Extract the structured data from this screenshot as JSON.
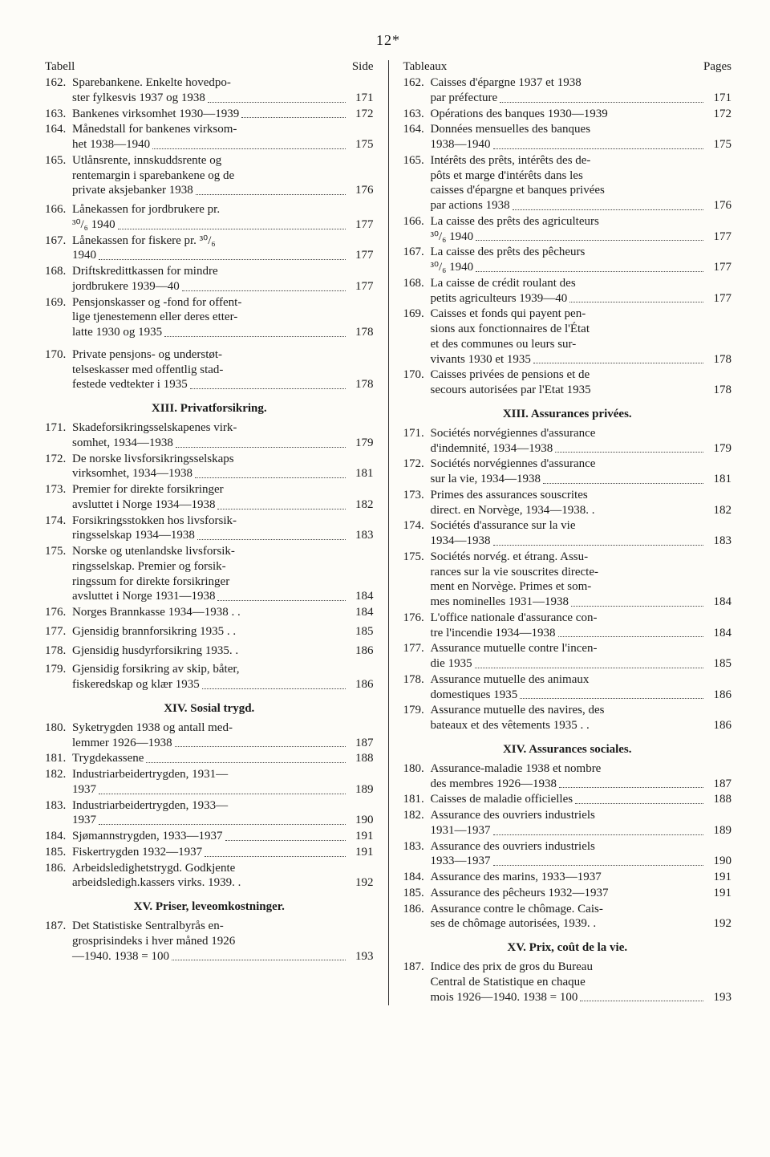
{
  "page_number": "12*",
  "left": {
    "header_left": "Tabell",
    "header_right": "Side",
    "groups": [
      {
        "entries": [
          {
            "num": "162.",
            "lines": [
              "Sparebankene. Enkelte hovedpo-"
            ],
            "last": "ster fylkesvis 1937 og 1938",
            "page": "171"
          },
          {
            "num": "163.",
            "lines": [],
            "last": "Bankenes virksomhet 1930—1939",
            "page": "172"
          },
          {
            "num": "164.",
            "lines": [
              "Månedstall for bankenes virksom-"
            ],
            "last": "het 1938—1940",
            "page": "175"
          },
          {
            "num": "165.",
            "lines": [
              "Utlånsrente, innskuddsrente og",
              "rentemargin i sparebankene og de"
            ],
            "last": "private aksjebanker 1938",
            "page": "176"
          }
        ]
      },
      {
        "spacer": "vspace-sm",
        "entries": [
          {
            "num": "166.",
            "lines": [
              "Lånekassen for jordbrukere pr."
            ],
            "last": "³⁰/₆ 1940",
            "page": "177"
          },
          {
            "num": "167.",
            "lines": [
              "Lånekassen for fiskere pr. ³⁰/₆"
            ],
            "last": "1940",
            "page": "177"
          },
          {
            "num": "168.",
            "lines": [
              "Driftskredittkassen for mindre"
            ],
            "last": "jordbrukere 1939—40",
            "page": "177"
          },
          {
            "num": "169.",
            "lines": [
              "Pensjonskasser og -fond for offent-",
              "lige tjenestemenn eller deres etter-"
            ],
            "last": "latte 1930 og 1935",
            "page": "178"
          }
        ]
      },
      {
        "spacer": "vspace",
        "entries": [
          {
            "num": "170.",
            "lines": [
              "Private pensjons- og understøt-",
              "telseskasser med offentlig stad-"
            ],
            "last": "festede vedtekter i 1935",
            "page": "178"
          }
        ]
      },
      {
        "heading": "XIII.  Privatforsikring.",
        "entries": [
          {
            "num": "171.",
            "lines": [
              "Skadeforsikringsselskapenes virk-"
            ],
            "last": "somhet, 1934—1938",
            "page": "179"
          },
          {
            "num": "172.",
            "lines": [
              "De norske livsforsikringsselskaps"
            ],
            "last": "virksomhet, 1934—1938",
            "page": "181"
          },
          {
            "num": "173.",
            "lines": [
              "Premier for direkte forsikringer"
            ],
            "last": "avsluttet i Norge 1934—1938",
            "page": "182"
          },
          {
            "num": "174.",
            "lines": [
              "Forsikringsstokken hos livsforsik-"
            ],
            "last": "ringsselskap 1934—1938",
            "page": "183"
          },
          {
            "num": "175.",
            "lines": [
              "Norske og utenlandske livsforsik-",
              "ringsselskap. Premier og forsik-",
              "ringssum for direkte forsikringer"
            ],
            "last": "avsluttet i Norge 1931—1938",
            "page": "184"
          },
          {
            "num": "176.",
            "lines": [],
            "last": "Norges Brannkasse 1934—1938 . .",
            "page": "184",
            "nodots": true
          }
        ]
      },
      {
        "spacer": "vspace-sm",
        "entries": [
          {
            "num": "177.",
            "lines": [],
            "last": "Gjensidig brannforsikring 1935 . .",
            "page": "185",
            "nodots": true
          }
        ]
      },
      {
        "spacer": "vspace-sm",
        "entries": [
          {
            "num": "178.",
            "lines": [],
            "last": "Gjensidig husdyrforsikring 1935. .",
            "page": "186",
            "nodots": true
          }
        ]
      },
      {
        "spacer": "vspace-sm",
        "entries": [
          {
            "num": "179.",
            "lines": [
              "Gjensidig forsikring av skip, båter,"
            ],
            "last": "fiskeredskap og klær 1935",
            "page": "186"
          }
        ]
      },
      {
        "heading": "XIV.  Sosial trygd.",
        "entries": [
          {
            "num": "180.",
            "lines": [
              "Syketrygden 1938 og antall med-"
            ],
            "last": "lemmer 1926—1938",
            "page": "187"
          },
          {
            "num": "181.",
            "lines": [],
            "last": "Trygdekassene",
            "page": "188"
          },
          {
            "num": "182.",
            "lines": [
              "Industriarbeidertrygden, 1931—"
            ],
            "last": "1937",
            "page": "189"
          },
          {
            "num": "183.",
            "lines": [
              "Industriarbeidertrygden, 1933—"
            ],
            "last": "1937",
            "page": "190"
          },
          {
            "num": "184.",
            "lines": [],
            "last": "Sjømannstrygden, 1933—1937",
            "page": "191"
          },
          {
            "num": "185.",
            "lines": [],
            "last": "Fiskertrygden 1932—1937",
            "page": "191"
          },
          {
            "num": "186.",
            "lines": [
              "Arbeidsledighetstrygd. Godkjente"
            ],
            "last": "arbeidsledigh.kassers virks. 1939. .",
            "page": "192",
            "nodots": true
          }
        ]
      },
      {
        "heading": "XV.  Priser, leveomkostninger.",
        "entries": [
          {
            "num": "187.",
            "lines": [
              "Det Statistiske Sentralbyrås en-",
              "grosprisindeks i hver måned 1926"
            ],
            "last": "—1940. 1938 = 100",
            "page": "193"
          }
        ]
      }
    ]
  },
  "right": {
    "header_left": "Tableaux",
    "header_right": "Pages",
    "groups": [
      {
        "entries": [
          {
            "num": "162.",
            "lines": [
              "Caisses d'épargne 1937 et 1938"
            ],
            "last": "par préfecture",
            "page": "171"
          },
          {
            "num": "163.",
            "lines": [],
            "last": "Opérations des banques 1930—1939",
            "page": "172",
            "nodots": true
          },
          {
            "num": "164.",
            "lines": [
              "Données mensuelles des banques"
            ],
            "last": "1938—1940",
            "page": "175"
          },
          {
            "num": "165.",
            "lines": [
              "Intérêts des prêts, intérêts des de-",
              "pôts et marge d'intérêts dans les",
              "caisses d'épargne et banques privées"
            ],
            "last": "par actions 1938",
            "page": "176"
          },
          {
            "num": "166.",
            "lines": [
              "La caisse des prêts des agriculteurs"
            ],
            "last": "³⁰/₆ 1940",
            "page": "177"
          },
          {
            "num": "167.",
            "lines": [
              "La caisse des prêts des pêcheurs"
            ],
            "last": "³⁰/₆ 1940",
            "page": "177"
          },
          {
            "num": "168.",
            "lines": [
              "La caisse de crédit roulant des"
            ],
            "last": "petits agriculteurs 1939—40",
            "page": "177"
          },
          {
            "num": "169.",
            "lines": [
              "Caisses et fonds qui payent pen-",
              "sions aux fonctionnaires de l'État",
              "et des communes ou leurs sur-"
            ],
            "last": "vivants 1930 et 1935",
            "page": "178"
          },
          {
            "num": "170.",
            "lines": [
              "Caisses privées de pensions et de"
            ],
            "last": "secours autorisées par l'Etat 1935",
            "page": "178",
            "nodots": true
          }
        ]
      },
      {
        "heading": "XIII.  Assurances privées.",
        "entries": [
          {
            "num": "171.",
            "lines": [
              "Sociétés norvégiennes d'assurance"
            ],
            "last": "d'indemnité, 1934—1938",
            "page": "179"
          },
          {
            "num": "172.",
            "lines": [
              "Sociétés norvégiennes d'assurance"
            ],
            "last": "sur la vie, 1934—1938",
            "page": "181"
          },
          {
            "num": "173.",
            "lines": [
              "Primes des assurances souscrites"
            ],
            "last": "direct. en Norvège, 1934—1938. .",
            "page": "182",
            "nodots": true
          },
          {
            "num": "174.",
            "lines": [
              "Sociétés d'assurance sur la vie"
            ],
            "last": "1934—1938",
            "page": "183"
          },
          {
            "num": "175.",
            "lines": [
              "Sociétés norvég. et étrang. Assu-",
              "rances sur la vie souscrites directe-",
              "ment en Norvège. Primes et som-"
            ],
            "last": "mes nominelles 1931—1938",
            "page": "184"
          },
          {
            "num": "176.",
            "lines": [
              "L'office nationale d'assurance con-"
            ],
            "last": "tre l'incendie 1934—1938",
            "page": "184"
          },
          {
            "num": "177.",
            "lines": [
              "Assurance mutuelle contre l'incen-"
            ],
            "last": "die 1935",
            "page": "185"
          },
          {
            "num": "178.",
            "lines": [
              "Assurance mutuelle des animaux"
            ],
            "last": "domestiques 1935",
            "page": "186"
          },
          {
            "num": "179.",
            "lines": [
              "Assurance mutuelle des navires, des"
            ],
            "last": "bateaux et des vêtements 1935 . .",
            "page": "186",
            "nodots": true
          }
        ]
      },
      {
        "heading": "XIV.  Assurances sociales.",
        "entries": [
          {
            "num": "180.",
            "lines": [
              "Assurance-maladie 1938 et nombre"
            ],
            "last": "des membres 1926—1938",
            "page": "187"
          },
          {
            "num": "181.",
            "lines": [],
            "last": "Caisses de maladie officielles",
            "page": "188"
          },
          {
            "num": "182.",
            "lines": [
              "Assurance des ouvriers industriels"
            ],
            "last": "1931—1937",
            "page": "189"
          },
          {
            "num": "183.",
            "lines": [
              "Assurance des ouvriers industriels"
            ],
            "last": "1933—1937",
            "page": "190"
          },
          {
            "num": "184.",
            "lines": [],
            "last": "Assurance des marins, 1933—1937",
            "page": "191",
            "nodots": true
          },
          {
            "num": "185.",
            "lines": [],
            "last": "Assurance des pêcheurs 1932—1937",
            "page": "191",
            "nodots": true
          },
          {
            "num": "186.",
            "lines": [
              "Assurance contre le chômage. Cais-"
            ],
            "last": "ses de chômage autorisées, 1939. .",
            "page": "192",
            "nodots": true
          }
        ]
      },
      {
        "heading": "XV.  Prix, coût de la vie.",
        "entries": [
          {
            "num": "187.",
            "lines": [
              "Indice des prix de gros du Bureau",
              "Central de Statistique en chaque"
            ],
            "last": "mois 1926—1940. 1938 = 100",
            "page": "193"
          }
        ]
      }
    ]
  }
}
